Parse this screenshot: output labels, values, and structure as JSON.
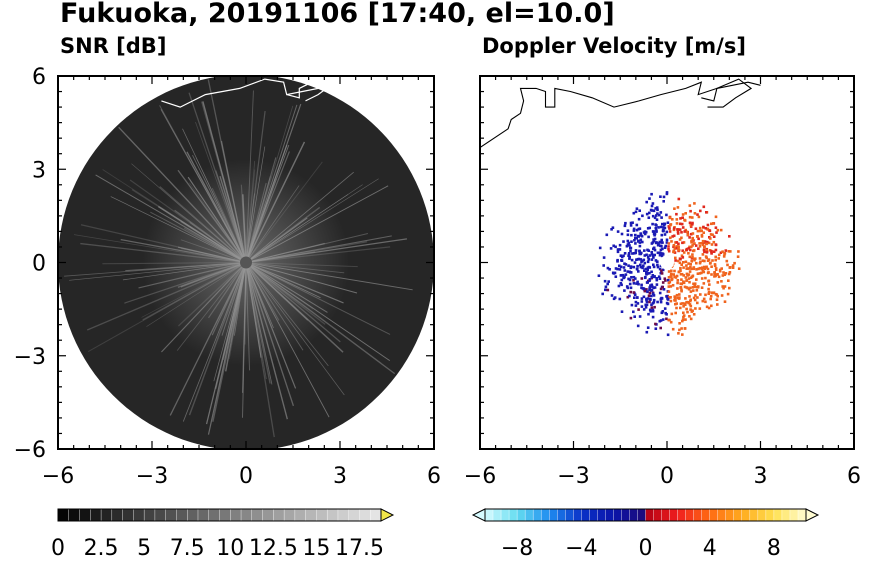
{
  "title": "Fukuoka, 20191106 [17:40, el=10.0]",
  "chart_data": [
    {
      "type": "heatmap",
      "title": "SNR [dB]",
      "xlim": [
        -6,
        6
      ],
      "ylim": [
        -6,
        6
      ],
      "x_ticks": [
        "−6",
        "−3",
        "0",
        "3",
        "6"
      ],
      "y_ticks": [
        "6",
        "3",
        "0",
        "−3",
        "−6"
      ],
      "range_km": 6,
      "colorbar": {
        "min": 0,
        "max": 18.75,
        "step": 0.625,
        "labels": [
          "0",
          "2.5",
          "5",
          "7.5",
          "10",
          "12.5",
          "15",
          "17.5"
        ],
        "label_values": [
          0,
          2.5,
          5,
          7.5,
          10,
          12.5,
          15,
          17.5
        ],
        "extend": "max",
        "low_color": "#000000",
        "high_color": "#e8e8e8",
        "over_color": "#f2e64a"
      },
      "colors": {
        "background": "#262626",
        "rays": "#8a8a8a",
        "center": "#555555",
        "coast": "#ffffff"
      }
    },
    {
      "type": "heatmap",
      "title": "Doppler Velocity [m/s]",
      "xlim": [
        -6,
        6
      ],
      "ylim": [
        -6,
        6
      ],
      "x_ticks": [
        "−6",
        "−3",
        "0",
        "3",
        "6"
      ],
      "y_ticks": [
        "6",
        "3",
        "0",
        "−3",
        "−6"
      ],
      "echo_extent_km": 2.4,
      "colorbar": {
        "min": -10,
        "max": 10,
        "step": 0.5,
        "labels": [
          "−8",
          "−4",
          "0",
          "4",
          "8"
        ],
        "label_values": [
          -8,
          -4,
          0,
          4,
          8
        ],
        "extend": "both",
        "stops": [
          {
            "v": -10,
            "c": "#d6fbff"
          },
          {
            "v": -8,
            "c": "#64dcf0"
          },
          {
            "v": -6,
            "c": "#1e8cf0"
          },
          {
            "v": -4,
            "c": "#0a32c8"
          },
          {
            "v": -2,
            "c": "#0a14aa"
          },
          {
            "v": 0,
            "c": "#1e0a78"
          },
          {
            "v": 0.01,
            "c": "#b40014"
          },
          {
            "v": 2,
            "c": "#f01e1e"
          },
          {
            "v": 4,
            "c": "#ff6a14"
          },
          {
            "v": 6,
            "c": "#ffaa1e"
          },
          {
            "v": 8,
            "c": "#ffe050"
          },
          {
            "v": 10,
            "c": "#fffcd2"
          }
        ]
      },
      "colors": {
        "approach": "#1a1ab4",
        "recede": "#f0641e",
        "coast": "#000000"
      }
    }
  ]
}
